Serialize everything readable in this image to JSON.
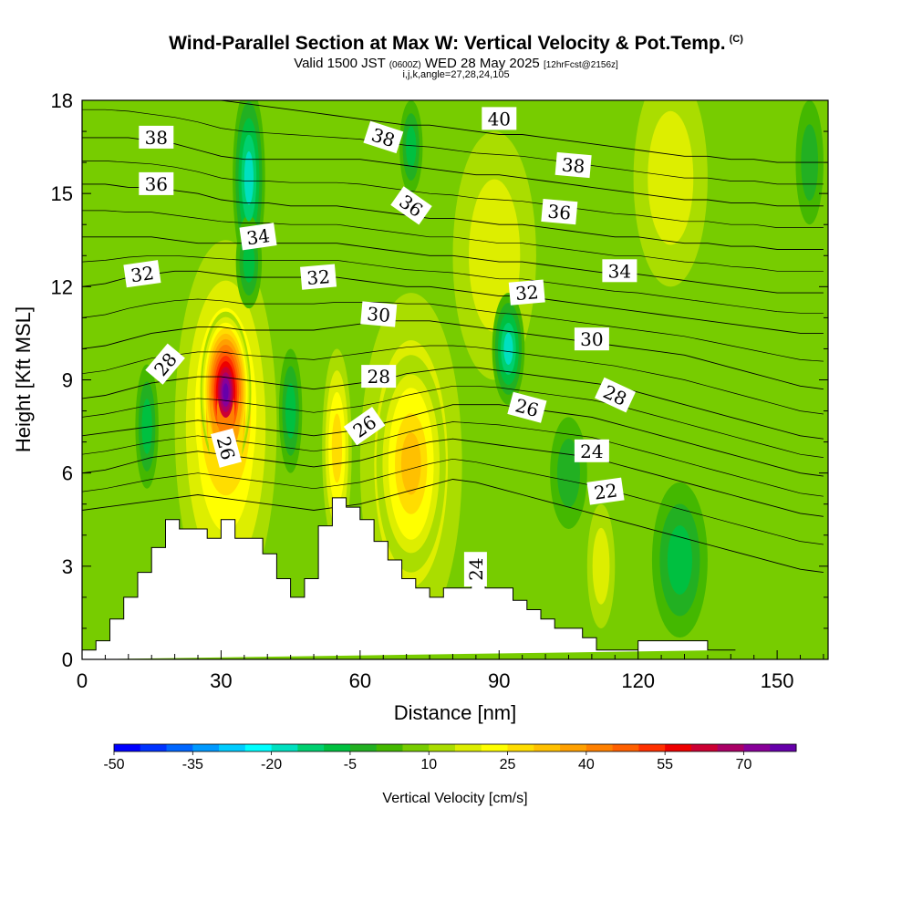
{
  "title": {
    "line1": "Wind-Parallel Section at Max W: Vertical Velocity & Pot.Temp.",
    "line1_sup": "(C)",
    "line2_a": "Valid 1500 JST ",
    "line2_b": "(0600Z)",
    "line2_c": " WED 28 May 2025 ",
    "line2_d": "[12hrFcst@2156z]",
    "line3": "i,j,k,angle=27,28,24,105"
  },
  "chart_data": {
    "type": "heatmap",
    "title": "Wind-Parallel Section at Max W: Vertical Velocity & Pot.Temp.",
    "xlabel": "Distance [nm]",
    "ylabel": "Height [Kft MSL]",
    "xlim": [
      0,
      161
    ],
    "ylim": [
      0,
      18
    ],
    "x_ticks": [
      0,
      30,
      60,
      90,
      120,
      150
    ],
    "x_tick_labels": [
      "0",
      "30",
      "60",
      "90",
      "120",
      "150"
    ],
    "y_ticks": [
      0,
      3,
      6,
      9,
      12,
      15,
      18
    ],
    "y_tick_labels": [
      "0",
      "3",
      "6",
      "9",
      "12",
      "15",
      "18"
    ],
    "colorbar": {
      "title": "Vertical Velocity [cm/s]",
      "labels": [
        "-50",
        "-35",
        "-20",
        "-5",
        "10",
        "25",
        "40",
        "55",
        "70"
      ],
      "levels": [
        -50,
        -45,
        -40,
        -35,
        -30,
        -25,
        -20,
        -15,
        -10,
        -5,
        0,
        5,
        10,
        15,
        20,
        25,
        30,
        35,
        40,
        45,
        50,
        55,
        60,
        65,
        70,
        75
      ],
      "colors": [
        "#0000ff",
        "#0033ff",
        "#0066ff",
        "#0099ff",
        "#00ccff",
        "#00ffff",
        "#00e0c0",
        "#00d070",
        "#00c040",
        "#22b022",
        "#44b800",
        "#77cc00",
        "#aadd00",
        "#ddee00",
        "#ffff00",
        "#ffdd00",
        "#ffc000",
        "#ffa000",
        "#ff8000",
        "#ff6000",
        "#ff3000",
        "#ee0000",
        "#cc0033",
        "#aa0066",
        "#880099",
        "#6600aa"
      ]
    },
    "terrain": {
      "x": [
        0,
        3,
        3,
        6,
        6,
        9,
        9,
        12,
        12,
        15,
        15,
        18,
        18,
        21,
        21,
        27,
        27,
        30,
        30,
        33,
        33,
        39,
        39,
        42,
        42,
        45,
        45,
        48,
        48,
        51,
        51,
        54,
        54,
        57,
        57,
        60,
        60,
        63,
        63,
        66,
        66,
        69,
        69,
        72,
        72,
        75,
        75,
        78,
        78,
        84,
        84,
        87,
        87,
        93,
        93,
        96,
        96,
        99,
        99,
        102,
        102,
        108,
        108,
        111,
        111,
        114,
        114,
        120,
        120,
        135,
        135,
        141,
        141,
        161
      ],
      "y": [
        0.3,
        0.3,
        0.6,
        0.6,
        1.3,
        1.3,
        2.0,
        2.0,
        2.8,
        2.8,
        3.6,
        3.6,
        4.5,
        4.5,
        4.2,
        4.2,
        3.9,
        3.9,
        4.5,
        4.5,
        3.9,
        3.9,
        3.4,
        3.4,
        2.6,
        2.6,
        2.0,
        2.0,
        2.6,
        2.6,
        4.3,
        4.3,
        5.2,
        5.2,
        4.9,
        4.9,
        4.5,
        4.5,
        3.8,
        3.8,
        3.2,
        3.2,
        2.6,
        2.6,
        2.3,
        2.3,
        2.0,
        2.0,
        2.3,
        2.3,
        2.6,
        2.6,
        2.3,
        2.3,
        1.9,
        1.9,
        1.6,
        1.6,
        1.3,
        1.3,
        1.0,
        1.0,
        0.7,
        0.7,
        0.3,
        0.3,
        0.3,
        0.3,
        0.6,
        0.6,
        0.3,
        0.3
      ]
    },
    "vertical_velocity_cells": [
      {
        "x": 31,
        "y": 8.6,
        "rx": 5.5,
        "ry": 2.6,
        "w": 75
      },
      {
        "x": 31,
        "y": 8.0,
        "rx": 9,
        "ry": 4.5,
        "w": 40
      },
      {
        "x": 31,
        "y": 7.5,
        "rx": 11,
        "ry": 6.0,
        "w": 25
      },
      {
        "x": 55,
        "y": 6.8,
        "rx": 3.2,
        "ry": 3.2,
        "w": 25
      },
      {
        "x": 71,
        "y": 6.3,
        "rx": 7.5,
        "ry": 3.5,
        "w": 30
      },
      {
        "x": 71,
        "y": 6.3,
        "rx": 11,
        "ry": 5.5,
        "w": 20
      },
      {
        "x": 112,
        "y": 3.0,
        "rx": 3,
        "ry": 2.0,
        "w": 15
      },
      {
        "x": 89,
        "y": 13.0,
        "rx": 9,
        "ry": 4.0,
        "w": 15
      },
      {
        "x": 127,
        "y": 15.5,
        "rx": 8,
        "ry": 3.5,
        "w": 15
      },
      {
        "x": 36,
        "y": 15.5,
        "rx": 3.5,
        "ry": 3.0,
        "w": -20
      },
      {
        "x": 36,
        "y": 12.8,
        "rx": 2.8,
        "ry": 1.5,
        "w": -10
      },
      {
        "x": 92,
        "y": 10.0,
        "rx": 3.5,
        "ry": 1.8,
        "w": -20
      },
      {
        "x": 71,
        "y": 16.5,
        "rx": 2.5,
        "ry": 1.5,
        "w": -10
      },
      {
        "x": 14,
        "y": 7.5,
        "rx": 2.5,
        "ry": 2.0,
        "w": -10
      },
      {
        "x": 45,
        "y": 8.0,
        "rx": 2.5,
        "ry": 2.0,
        "w": -10
      },
      {
        "x": 129,
        "y": 3.2,
        "rx": 6,
        "ry": 2.5,
        "w": -10
      },
      {
        "x": 157,
        "y": 16.0,
        "rx": 3,
        "ry": 2.0,
        "w": -5
      },
      {
        "x": 105,
        "y": 6.0,
        "rx": 4,
        "ry": 1.8,
        "w": -5
      }
    ],
    "isentropes": [
      {
        "theta": 22,
        "h": [
          4.8,
          4.9,
          5.0,
          5.1,
          5.2,
          5.3,
          5.2,
          5.1,
          5.0,
          4.9,
          4.8,
          4.9,
          5.0,
          5.2,
          5.4,
          5.6,
          5.8,
          5.7,
          5.5,
          5.3,
          5.1,
          4.9,
          4.7,
          4.5,
          4.3,
          4.1,
          3.9,
          3.7,
          3.5,
          3.3,
          3.1,
          2.9,
          2.8
        ]
      },
      {
        "theta": 24,
        "h": [
          6.0,
          6.1,
          6.3,
          6.5,
          6.6,
          6.7,
          6.6,
          6.5,
          6.4,
          6.3,
          6.2,
          6.3,
          6.4,
          6.6,
          6.8,
          7.0,
          7.1,
          7.0,
          6.9,
          6.8,
          6.7,
          6.6,
          6.5,
          6.3,
          6.1,
          5.9,
          5.7,
          5.5,
          5.3,
          5.1,
          4.9,
          4.7,
          4.6
        ]
      },
      {
        "theta": 26,
        "h": [
          7.2,
          7.3,
          7.4,
          7.5,
          7.6,
          7.7,
          7.6,
          7.5,
          7.4,
          7.3,
          7.2,
          7.3,
          7.4,
          7.6,
          7.8,
          8.0,
          8.2,
          8.2,
          8.2,
          8.1,
          8.0,
          7.9,
          7.8,
          7.6,
          7.4,
          7.2,
          7.0,
          6.8,
          6.6,
          6.4,
          6.2,
          6.0,
          5.9
        ]
      },
      {
        "theta": 28,
        "h": [
          8.4,
          8.5,
          8.7,
          8.9,
          9.0,
          9.1,
          9.1,
          9.0,
          8.9,
          8.8,
          8.7,
          8.8,
          8.9,
          9.0,
          9.2,
          9.3,
          9.4,
          9.4,
          9.3,
          9.2,
          9.1,
          9.0,
          8.9,
          8.8,
          8.6,
          8.4,
          8.2,
          8.0,
          7.8,
          7.6,
          7.4,
          7.2,
          7.1
        ]
      },
      {
        "theta": 30,
        "h": [
          10.0,
          10.1,
          10.3,
          10.5,
          10.6,
          10.7,
          10.7,
          10.6,
          10.6,
          10.6,
          10.6,
          10.7,
          10.8,
          10.9,
          10.9,
          10.9,
          10.8,
          10.7,
          10.6,
          10.5,
          10.4,
          10.3,
          10.2,
          10.1,
          10.0,
          9.9,
          9.8,
          9.6,
          9.4,
          9.2,
          9.0,
          8.8,
          8.7
        ]
      },
      {
        "theta": 32,
        "h": [
          12.0,
          12.1,
          12.3,
          12.4,
          12.5,
          12.5,
          12.4,
          12.3,
          12.3,
          12.3,
          12.3,
          12.3,
          12.2,
          12.1,
          12.0,
          12.0,
          11.9,
          11.8,
          11.7,
          11.7,
          11.6,
          11.5,
          11.4,
          11.3,
          11.2,
          11.1,
          11.0,
          10.9,
          10.8,
          10.7,
          10.6,
          10.5,
          10.5
        ]
      },
      {
        "theta": 34,
        "h": [
          13.6,
          13.6,
          13.6,
          13.6,
          13.5,
          13.4,
          13.4,
          13.4,
          13.4,
          13.4,
          13.4,
          13.4,
          13.3,
          13.2,
          13.1,
          13.0,
          13.0,
          12.9,
          12.8,
          12.8,
          12.7,
          12.6,
          12.5,
          12.4,
          12.4,
          12.3,
          12.2,
          12.1,
          12.0,
          11.9,
          11.8,
          11.8,
          11.8
        ]
      },
      {
        "theta": 36,
        "h": [
          15.3,
          15.3,
          15.2,
          15.2,
          15.1,
          15.0,
          14.8,
          14.7,
          14.7,
          14.6,
          14.6,
          14.6,
          14.5,
          14.4,
          14.3,
          14.2,
          14.2,
          14.1,
          14.0,
          14.0,
          13.9,
          13.8,
          13.7,
          13.6,
          13.6,
          13.5,
          13.4,
          13.4,
          13.3,
          13.3,
          13.2,
          13.2,
          13.2
        ]
      },
      {
        "theta": 38,
        "h": [
          16.8,
          16.8,
          16.8,
          16.7,
          16.6,
          16.4,
          16.2,
          16.1,
          16.1,
          16.1,
          16.1,
          16.1,
          16.1,
          16.0,
          15.9,
          15.8,
          15.7,
          15.6,
          15.6,
          15.5,
          15.4,
          15.3,
          15.2,
          15.1,
          15.0,
          14.9,
          14.8,
          14.8,
          14.7,
          14.7,
          14.6,
          14.6,
          14.6
        ]
      },
      {
        "theta": 40,
        "h": [
          18.6,
          18.6,
          18.5,
          18.4,
          18.3,
          18.2,
          18.0,
          17.9,
          17.8,
          17.7,
          17.6,
          17.5,
          17.4,
          17.3,
          17.2,
          17.2,
          17.1,
          17.0,
          16.9,
          16.9,
          16.8,
          16.7,
          16.6,
          16.5,
          16.4,
          16.3,
          16.2,
          16.2,
          16.1,
          16.1,
          16.0,
          16.0,
          16.0
        ]
      }
    ],
    "isentrope_x_step": 5,
    "contour_labels": [
      {
        "text": "38",
        "x": 16,
        "y": 16.8,
        "angle": 0
      },
      {
        "text": "36",
        "x": 16,
        "y": 15.3,
        "angle": 0
      },
      {
        "text": "34",
        "x": 38,
        "y": 13.6,
        "angle": -8
      },
      {
        "text": "32",
        "x": 13,
        "y": 12.4,
        "angle": -8
      },
      {
        "text": "28",
        "x": 18,
        "y": 9.5,
        "angle": -50
      },
      {
        "text": "26",
        "x": 31,
        "y": 6.8,
        "angle": 75
      },
      {
        "text": "38",
        "x": 65,
        "y": 16.8,
        "angle": 18
      },
      {
        "text": "36",
        "x": 71,
        "y": 14.6,
        "angle": 35
      },
      {
        "text": "32",
        "x": 51,
        "y": 12.3,
        "angle": -5
      },
      {
        "text": "30",
        "x": 64,
        "y": 11.1,
        "angle": 5
      },
      {
        "text": "28",
        "x": 64,
        "y": 9.1,
        "angle": 0
      },
      {
        "text": "26",
        "x": 61,
        "y": 7.5,
        "angle": -35
      },
      {
        "text": "40",
        "x": 90,
        "y": 17.4,
        "angle": 0
      },
      {
        "text": "38",
        "x": 106,
        "y": 15.9,
        "angle": 5
      },
      {
        "text": "36",
        "x": 103,
        "y": 14.4,
        "angle": 5
      },
      {
        "text": "32",
        "x": 96,
        "y": 11.8,
        "angle": -5
      },
      {
        "text": "34",
        "x": 116,
        "y": 12.5,
        "angle": 0
      },
      {
        "text": "30",
        "x": 110,
        "y": 10.3,
        "angle": 0
      },
      {
        "text": "26",
        "x": 96,
        "y": 8.1,
        "angle": 15
      },
      {
        "text": "28",
        "x": 115,
        "y": 8.5,
        "angle": 25
      },
      {
        "text": "24",
        "x": 110,
        "y": 6.7,
        "angle": 0
      },
      {
        "text": "22",
        "x": 113,
        "y": 5.4,
        "angle": -8
      },
      {
        "text": "24",
        "x": 85,
        "y": 2.9,
        "angle": -90
      }
    ]
  }
}
